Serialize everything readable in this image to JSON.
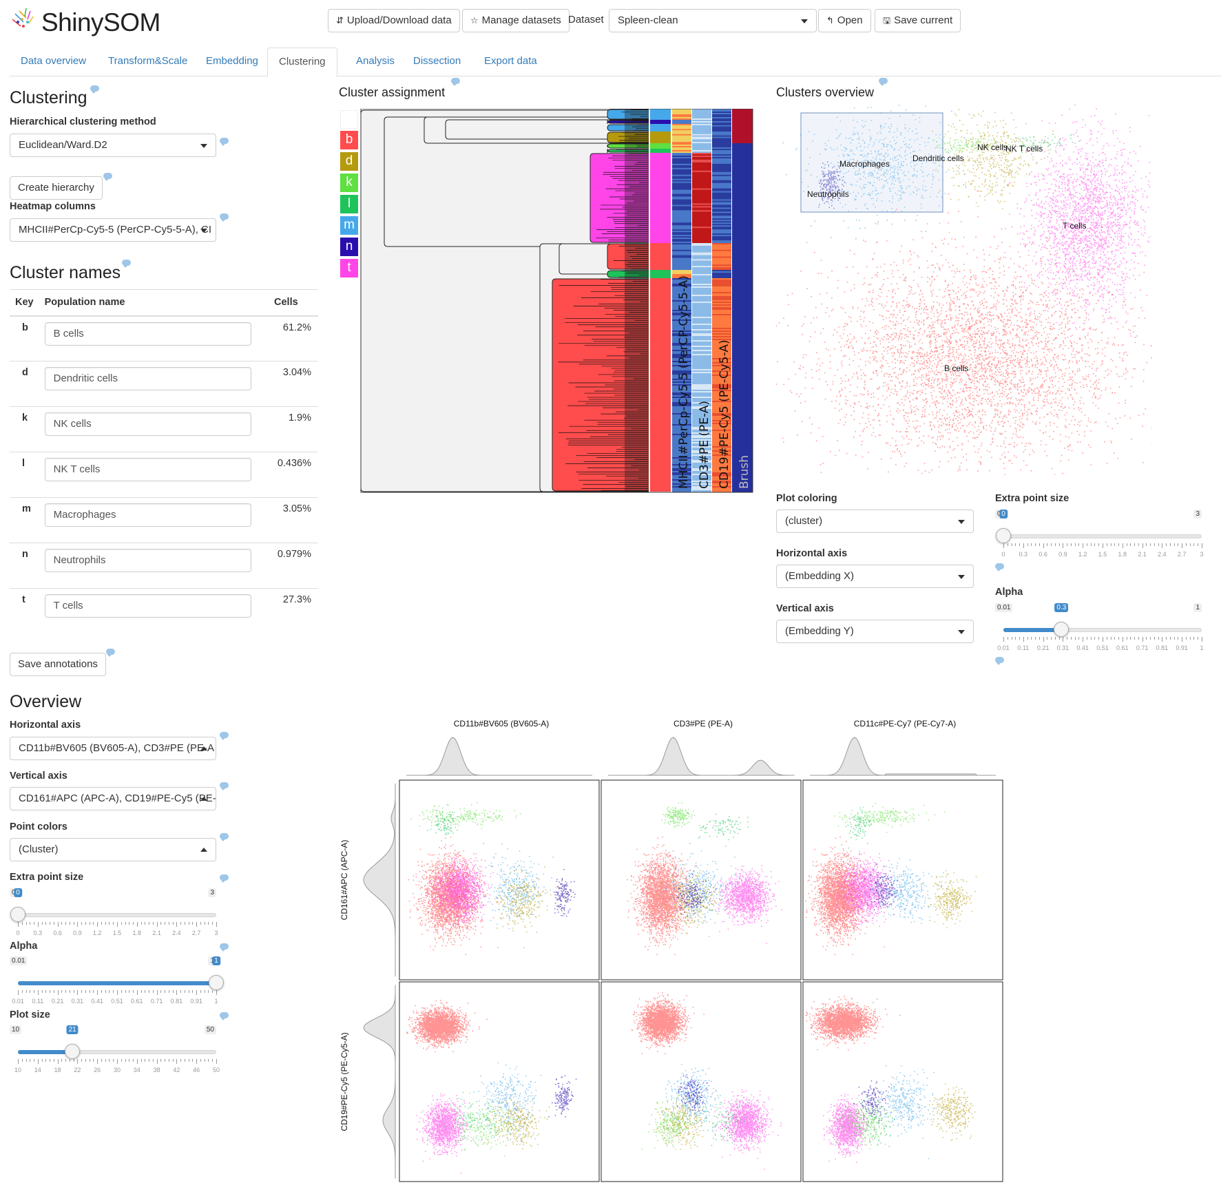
{
  "app": {
    "title": "ShinySOM"
  },
  "header": {
    "upload_label": "Upload/Download data",
    "manage_label": "Manage datasets",
    "dataset_label": "Dataset",
    "dataset_value": "Spleen-clean",
    "open_label": "Open",
    "save_label": "Save current"
  },
  "tabs": [
    {
      "label": "Data overview"
    },
    {
      "label": "Transform&Scale"
    },
    {
      "label": "Embedding"
    },
    {
      "label": "Clustering",
      "active": true
    },
    {
      "label": "Analysis"
    },
    {
      "label": "Dissection"
    },
    {
      "label": "Export data"
    }
  ],
  "clustering": {
    "title": "Clustering",
    "method_label": "Hierarchical clustering method",
    "method_value": "Euclidean/Ward.D2",
    "create_label": "Create hierarchy",
    "heatmap_label": "Heatmap columns",
    "heatmap_value": "MHCII#PerCp-Cy5-5 (PerCP-Cy5-5-A), CI"
  },
  "cluster_names": {
    "title": "Cluster names",
    "headers": [
      "Key",
      "Population name",
      "Cells"
    ],
    "rows": [
      {
        "key": "b",
        "name": "B cells",
        "cells": "61.2%",
        "color": "#ff4c4c"
      },
      {
        "key": "d",
        "name": "Dendritic cells",
        "cells": "3.04%",
        "color": "#b59a0d"
      },
      {
        "key": "k",
        "name": "NK cells",
        "cells": "1.9%",
        "color": "#5ee040"
      },
      {
        "key": "l",
        "name": "NK T cells",
        "cells": "0.436%",
        "color": "#1ec45a"
      },
      {
        "key": "m",
        "name": "Macrophages",
        "cells": "3.05%",
        "color": "#45a8ea"
      },
      {
        "key": "n",
        "name": "Neutrophils",
        "cells": "0.979%",
        "color": "#2a0fae"
      },
      {
        "key": "t",
        "name": "T cells",
        "cells": "27.3%",
        "color": "#ff44e8"
      }
    ],
    "save_label": "Save annotations"
  },
  "assignment": {
    "title": "Cluster assignment",
    "columns": [
      "MHCII#PerCp-Cy5-5 (PerCP-Cy5-5-A)",
      "CD3#PE (PE-A)",
      "CD19#PE-Cy5 (PE-Cy5-A)",
      "Brush"
    ]
  },
  "overview_plot": {
    "title": "Clusters overview",
    "labels": [
      "NK cells",
      "NK T cells",
      "Macrophages",
      "Dendritic cells",
      "Neutrophils",
      "T cells",
      "B cells"
    ]
  },
  "plot_controls": {
    "coloring_label": "Plot coloring",
    "coloring_value": "(cluster)",
    "haxis_label": "Horizontal axis",
    "haxis_value": "(Embedding X)",
    "vaxis_label": "Vertical axis",
    "vaxis_value": "(Embedding Y)",
    "size_label": "Extra point size",
    "size": {
      "min": "0",
      "max": "3",
      "value": "0",
      "ticks": [
        "0",
        "0.3",
        "0.6",
        "0.9",
        "1.2",
        "1.5",
        "1.8",
        "2.1",
        "2.4",
        "2.7",
        "3"
      ]
    },
    "alpha_label": "Alpha",
    "alpha": {
      "min": "0.01",
      "max": "1",
      "value": "0.3",
      "ticks": [
        "0.01",
        "0.11",
        "0.21",
        "0.31",
        "0.41",
        "0.51",
        "0.61",
        "0.71",
        "0.81",
        "0.91",
        "1"
      ]
    }
  },
  "overview": {
    "title": "Overview",
    "haxis_label": "Horizontal axis",
    "haxis_value": "CD11b#BV605 (BV605-A), CD3#PE (PE-A",
    "vaxis_label": "Vertical axis",
    "vaxis_value": "CD161#APC (APC-A), CD19#PE-Cy5 (PE-",
    "colors_label": "Point colors",
    "colors_value": "(Cluster)",
    "size_label": "Extra point size",
    "size": {
      "min": "0",
      "max": "3",
      "value": "0",
      "ticks": [
        "0",
        "0.3",
        "0.6",
        "0.9",
        "1.2",
        "1.5",
        "1.8",
        "2.1",
        "2.4",
        "2.7",
        "3"
      ]
    },
    "alpha_label": "Alpha",
    "alpha": {
      "min": "0.01",
      "max": "1",
      "value": "1",
      "ticks": [
        "0.01",
        "0.11",
        "0.21",
        "0.31",
        "0.41",
        "0.51",
        "0.61",
        "0.71",
        "0.81",
        "0.91",
        "1"
      ]
    },
    "plotsize_label": "Plot size",
    "plotsize": {
      "min": "10",
      "max": "50",
      "value": "21",
      "ticks": [
        "10",
        "14",
        "18",
        "22",
        "26",
        "30",
        "34",
        "38",
        "42",
        "46",
        "50"
      ]
    }
  },
  "matrix": {
    "x_labels": [
      "CD11b#BV605 (BV605-A)",
      "CD3#PE (PE-A)",
      "CD11c#PE-Cy7 (PE-Cy7-A)"
    ],
    "y_labels": [
      "CD161#APC (APC-A)",
      "CD19#PE-Cy5 (PE-Cy5-A)"
    ]
  }
}
